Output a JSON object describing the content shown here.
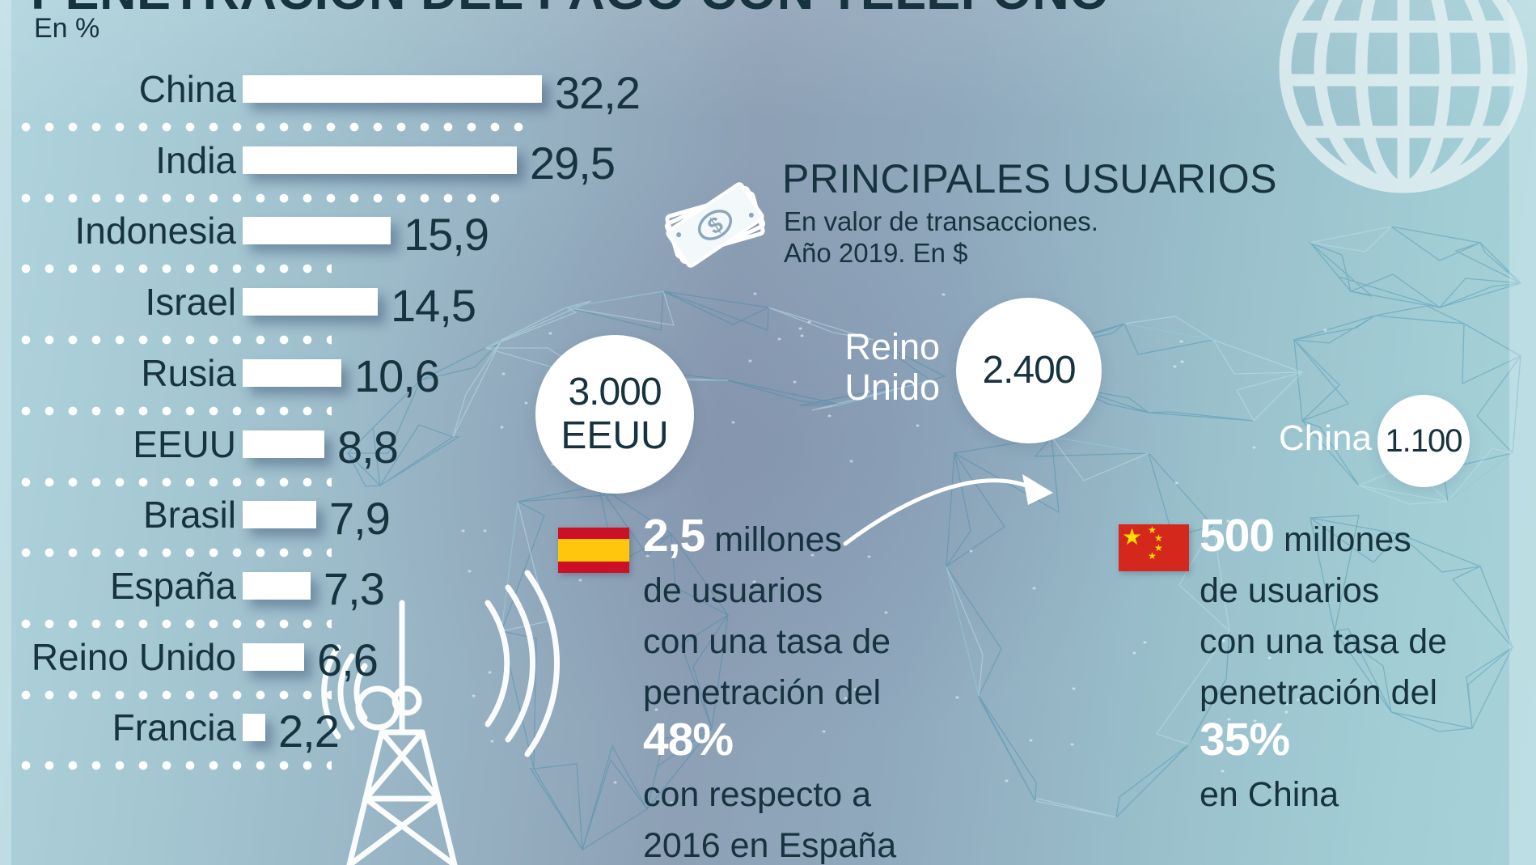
{
  "header": {
    "title": "PENETRACIÓN DEL PAGO CON TELÉFONO",
    "units_label": "En %"
  },
  "principales": {
    "heading": "PRINCIPALES USUARIOS",
    "subtitle_line1": "En valor de transacciones.",
    "subtitle_line2": "Año 2019. En $"
  },
  "chart_data": [
    {
      "type": "bar",
      "title": "PENETRACIÓN DEL PAGO CON TELÉFONO",
      "subtitle": "En %",
      "orientation": "horizontal",
      "categories": [
        "China",
        "India",
        "Indonesia",
        "Israel",
        "Rusia",
        "EEUU",
        "Brasil",
        "España",
        "Reino Unido",
        "Francia"
      ],
      "values": [
        32.2,
        29.5,
        15.9,
        14.5,
        10.6,
        8.8,
        7.9,
        7.3,
        6.6,
        2.2
      ],
      "value_labels": [
        "32,2",
        "29,5",
        "15,9",
        "14,5",
        "10,6",
        "8,8",
        "7,9",
        "7,3",
        "6,6",
        "2,2"
      ],
      "bar_color": "#ffffff",
      "grid": false,
      "legend": false
    },
    {
      "type": "bubble",
      "title": "PRINCIPALES USUARIOS",
      "subtitle": "En valor de transacciones. Año 2019. En $",
      "points": [
        {
          "label": "EEUU",
          "value": 3000,
          "value_label": "3.000",
          "label_position": "inside"
        },
        {
          "label": "Reino Unido",
          "value": 2400,
          "value_label": "2.400",
          "label_position": "outside-left"
        },
        {
          "label": "China",
          "value": 1100,
          "value_label": "1.100",
          "label_position": "outside-left"
        }
      ]
    }
  ],
  "stats": {
    "spain": {
      "flag": "spain-flag-icon",
      "lines": [
        [
          {
            "t": "2,5",
            "hl": true
          },
          {
            "t": " millones"
          }
        ],
        [
          {
            "t": "de usuarios"
          }
        ],
        [
          {
            "t": "con una tasa de"
          }
        ],
        [
          {
            "t": "penetración del"
          }
        ],
        [
          {
            "t": "48%",
            "hl": true
          }
        ],
        [
          {
            "t": "con respecto a"
          }
        ],
        [
          {
            "t": "2016 en España"
          }
        ]
      ]
    },
    "china": {
      "flag": "china-flag-icon",
      "lines": [
        [
          {
            "t": "500",
            "hl": true
          },
          {
            "t": " millones"
          }
        ],
        [
          {
            "t": "de usuarios"
          }
        ],
        [
          {
            "t": "con una tasa de"
          }
        ],
        [
          {
            "t": "penetración del"
          }
        ],
        [
          {
            "t": "35%",
            "hl": true
          }
        ],
        [
          {
            "t": "en China"
          }
        ]
      ]
    }
  },
  "icons": [
    "globe-icon",
    "money-bills-icon",
    "radio-tower-icon",
    "spain-flag-icon",
    "china-flag-icon",
    "curved-arrow-icon"
  ],
  "colors": {
    "dark_text": "#17333f",
    "bar_white": "#ffffff",
    "mesh_teal": "#2c84a6",
    "mesh_light": "#bfe3ec",
    "spain_red": "#cc1126",
    "spain_yellow": "#ffc60b",
    "china_red": "#d5281c",
    "china_yellow": "#ffde00",
    "white_text": "#ffffff"
  }
}
